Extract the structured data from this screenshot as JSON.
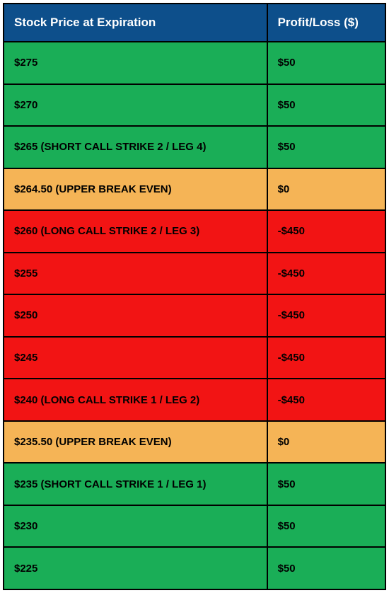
{
  "table": {
    "columns": [
      "Stock Price at Expiration",
      "Profit/Loss ($)"
    ],
    "header_bg": "#0d4f8b",
    "header_text_color": "#ffffff",
    "border_color": "#000000",
    "cell_text_color": "#000000",
    "header_fontsize": 17,
    "cell_fontsize": 15,
    "col_widths_pct": [
      69,
      31
    ],
    "row_colors": {
      "green": "#1aae57",
      "orange": "#f5b456",
      "red": "#f21414"
    },
    "rows": [
      {
        "price": "$275",
        "pl": "$50",
        "color": "green"
      },
      {
        "price": "$270",
        "pl": "$50",
        "color": "green"
      },
      {
        "price": "$265 (SHORT CALL STRIKE 2 / LEG 4)",
        "pl": "$50",
        "color": "green"
      },
      {
        "price": "$264.50 (UPPER BREAK EVEN)",
        "pl": "$0",
        "color": "orange"
      },
      {
        "price": "$260 (LONG CALL STRIKE 2 / LEG 3)",
        "pl": "-$450",
        "color": "red"
      },
      {
        "price": "$255",
        "pl": "-$450",
        "color": "red"
      },
      {
        "price": "$250",
        "pl": "-$450",
        "color": "red"
      },
      {
        "price": "$245",
        "pl": "-$450",
        "color": "red"
      },
      {
        "price": "$240 (LONG CALL STRIKE 1 / LEG 2)",
        "pl": "-$450",
        "color": "red"
      },
      {
        "price": "$235.50 (UPPER BREAK EVEN)",
        "pl": "$0",
        "color": "orange"
      },
      {
        "price": "$235 (SHORT CALL STRIKE 1 / LEG 1)",
        "pl": "$50",
        "color": "green"
      },
      {
        "price": "$230",
        "pl": "$50",
        "color": "green"
      },
      {
        "price": "$225",
        "pl": "$50",
        "color": "green"
      }
    ]
  }
}
